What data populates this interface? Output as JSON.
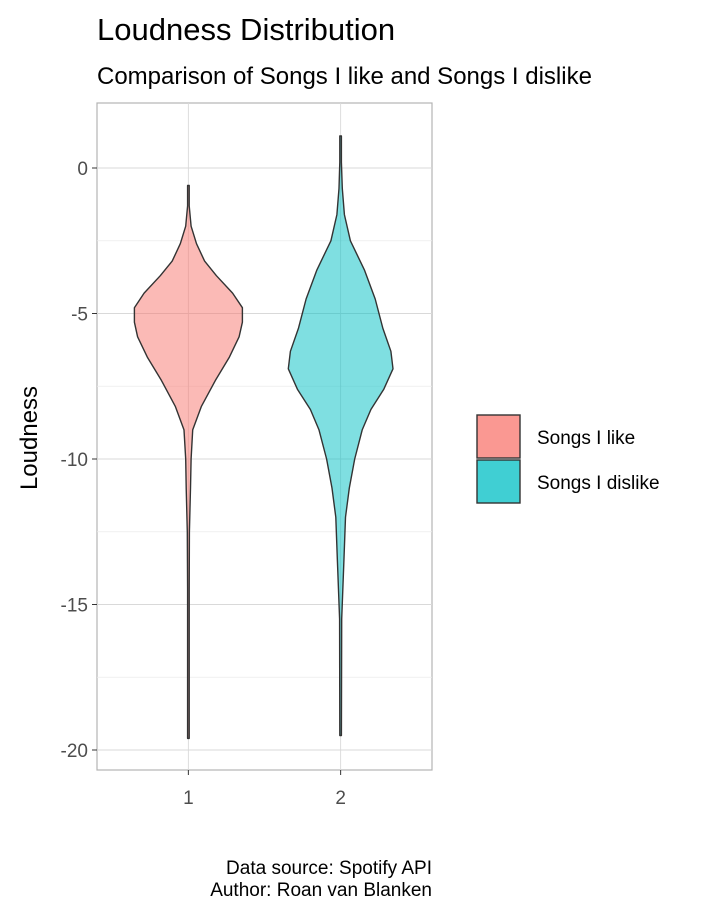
{
  "chart_data": {
    "type": "violin",
    "title": "Loudness Distribution",
    "subtitle": "Comparison of Songs I like and Songs I dislike",
    "xlabel": "",
    "ylabel": "Loudness",
    "x_tick_labels": [
      "1",
      "2"
    ],
    "y_ticks": [
      0,
      -5,
      -10,
      -15,
      -20
    ],
    "y_tick_labels": [
      "0",
      "-5",
      "-10",
      "-15",
      "-20"
    ],
    "ylim": [
      -20.7,
      2.2
    ],
    "grid": true,
    "legend_position": "right",
    "caption": [
      "Data source: Spotify API",
      "Author: Roan van Blanken"
    ],
    "series": [
      {
        "name": "Songs I like",
        "x": 1,
        "color": "#F8766D",
        "y_range": [
          -19.6,
          -0.6
        ],
        "density_profile": [
          [
            -0.6,
            0.0
          ],
          [
            -1.3,
            0.01
          ],
          [
            -2.0,
            0.05
          ],
          [
            -2.6,
            0.15
          ],
          [
            -3.2,
            0.3
          ],
          [
            -3.7,
            0.52
          ],
          [
            -4.3,
            0.82
          ],
          [
            -4.8,
            1.0
          ],
          [
            -5.3,
            1.0
          ],
          [
            -5.8,
            0.94
          ],
          [
            -6.5,
            0.76
          ],
          [
            -7.3,
            0.5
          ],
          [
            -8.2,
            0.24
          ],
          [
            -9.0,
            0.08
          ],
          [
            -10.0,
            0.05
          ],
          [
            -11.0,
            0.04
          ],
          [
            -12.5,
            0.02
          ],
          [
            -14.5,
            0.01
          ],
          [
            -19.6,
            0.0
          ]
        ]
      },
      {
        "name": "Songs I dislike",
        "x": 2,
        "color": "#00BFC4",
        "y_range": [
          -19.5,
          1.1
        ],
        "density_profile": [
          [
            1.1,
            0.0
          ],
          [
            0.2,
            0.01
          ],
          [
            -0.7,
            0.03
          ],
          [
            -1.6,
            0.07
          ],
          [
            -2.5,
            0.18
          ],
          [
            -3.5,
            0.44
          ],
          [
            -4.5,
            0.64
          ],
          [
            -5.5,
            0.78
          ],
          [
            -6.3,
            0.93
          ],
          [
            -6.9,
            0.97
          ],
          [
            -7.6,
            0.8
          ],
          [
            -8.3,
            0.56
          ],
          [
            -9.0,
            0.4
          ],
          [
            -10.0,
            0.26
          ],
          [
            -11.0,
            0.16
          ],
          [
            -12.0,
            0.09
          ],
          [
            -13.5,
            0.06
          ],
          [
            -15.5,
            0.02
          ],
          [
            -19.5,
            0.0
          ]
        ]
      }
    ]
  }
}
